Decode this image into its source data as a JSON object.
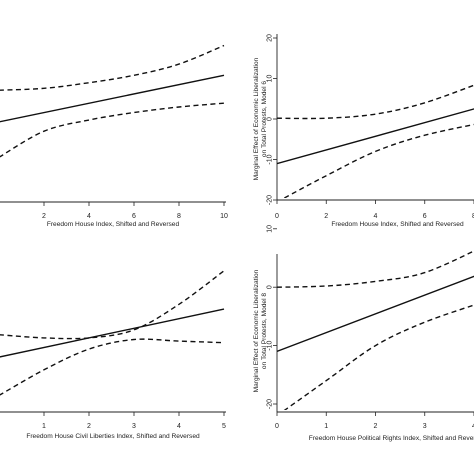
{
  "chart_data": [
    {
      "type": "line",
      "panel": "top-left",
      "xlabel": "Freedom House Index, Shifted and Reversed",
      "ylabel": "",
      "xticks": [
        2,
        4,
        6,
        8,
        10
      ],
      "xlim": [
        0,
        10
      ],
      "ylim": [
        -22,
        22
      ],
      "yticks": [],
      "series": [
        {
          "x": [
            0,
            10
          ],
          "y": [
            -0.5,
            12
          ]
        },
        {
          "x": [
            0,
            2,
            4,
            6,
            8,
            10
          ],
          "y": [
            8,
            8.5,
            10,
            12,
            15,
            20
          ]
        },
        {
          "x": [
            0,
            2,
            4,
            6,
            8,
            10
          ],
          "y": [
            -10,
            -3,
            0,
            2,
            3.5,
            4.5
          ]
        }
      ]
    },
    {
      "type": "line",
      "panel": "top-right",
      "xlabel": "Freedom House Index, Shifted and Reversed",
      "ylabel": "Marginal Effect of Economic Liberalization on Total Protests, Model 6",
      "xticks": [
        0,
        2,
        4,
        6,
        8
      ],
      "tick_labels_x": [
        "0",
        "2",
        "4",
        "6",
        "8"
      ],
      "xlim": [
        0,
        8
      ],
      "ylim": [
        -20,
        20
      ],
      "yticks": [
        -20,
        -10,
        0,
        10,
        20
      ],
      "series": [
        {
          "x": [
            0,
            8.3
          ],
          "y": [
            -11,
            3
          ]
        },
        {
          "x": [
            0,
            2,
            4,
            6,
            8.3
          ],
          "y": [
            0.2,
            0.2,
            1.2,
            4,
            9
          ]
        },
        {
          "x": [
            0,
            2,
            4,
            6,
            8.3
          ],
          "y": [
            -20.5,
            -14,
            -8,
            -4,
            -1
          ]
        }
      ]
    },
    {
      "type": "line",
      "panel": "bottom-left",
      "xlabel": "Freedom House Civil Liberties Index, Shifted and Reversed",
      "ylabel": "",
      "xticks": [
        1,
        2,
        3,
        4,
        5
      ],
      "xlim": [
        0,
        5
      ],
      "ylim": [
        -26,
        20
      ],
      "yticks": [],
      "series": [
        {
          "x": [
            0,
            5
          ],
          "y": [
            -11,
            4
          ]
        },
        {
          "x": [
            0,
            1,
            2,
            3,
            4,
            5
          ],
          "y": [
            -4,
            -5,
            -5,
            -2.5,
            5.5,
            16
          ]
        },
        {
          "x": [
            0,
            1,
            2,
            3,
            4,
            5
          ],
          "y": [
            -23,
            -15,
            -8.5,
            -5.5,
            -6,
            -6.5
          ]
        }
      ]
    },
    {
      "type": "line",
      "panel": "bottom-right",
      "xlabel": "Freedom House Political Rights Index, Shifted and Reversed",
      "ylabel": "Marginal Effect of Economic Liberalization on Total Protests, Model 8",
      "xticks": [
        0,
        1,
        2,
        3,
        4
      ],
      "tick_labels_x": [
        "0",
        "1",
        "2",
        "3",
        "4"
      ],
      "xlim": [
        0,
        4
      ],
      "ylim": [
        -20,
        20
      ],
      "yticks": [
        -20,
        -10,
        0,
        10
      ],
      "series": [
        {
          "x": [
            0,
            4.2
          ],
          "y": [
            -11,
            2.5
          ]
        },
        {
          "x": [
            0,
            1,
            2,
            3,
            4.2
          ],
          "y": [
            0,
            0.2,
            1,
            2.5,
            7
          ]
        },
        {
          "x": [
            0,
            1,
            2,
            3,
            4.2
          ],
          "y": [
            -22,
            -16,
            -10,
            -6,
            -2.5
          ]
        }
      ]
    }
  ]
}
